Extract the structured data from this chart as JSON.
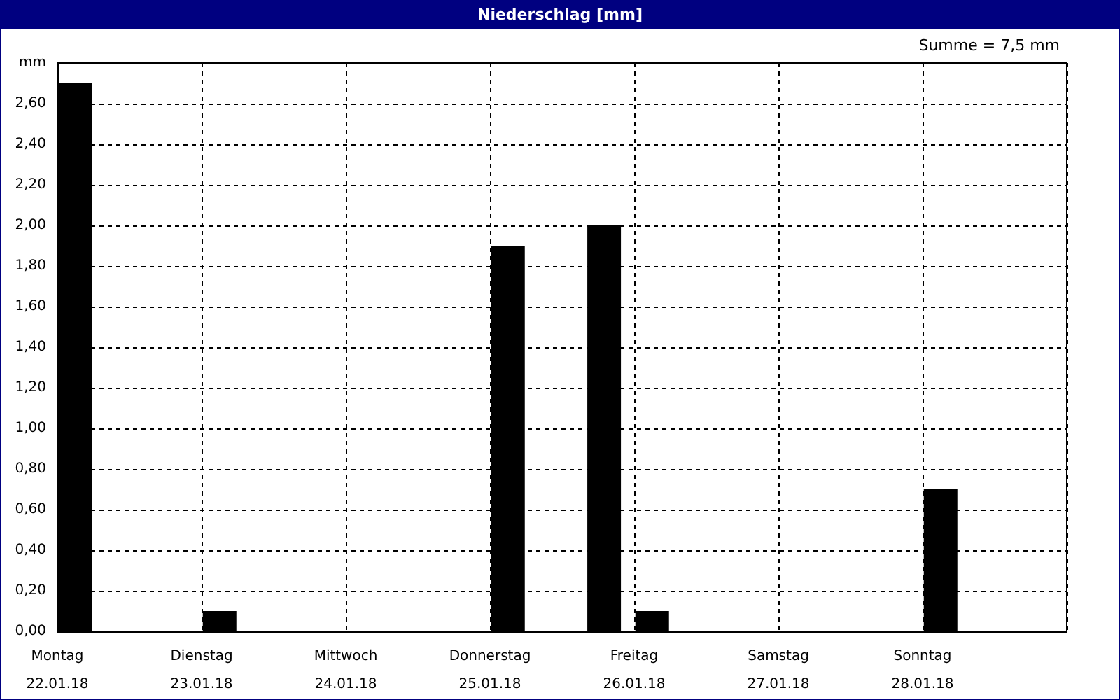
{
  "chart_data": {
    "type": "bar",
    "title": "Niederschlag [mm]",
    "annotations": [
      "Summe = 7,5 mm"
    ],
    "x": [
      "--01-22T03:00",
      "--01-23T03:00",
      "--01-25T03:00",
      "--01-25T19:00",
      "--01-26T03:00",
      "--01-28T03:00"
    ],
    "values": [
      2.7,
      0.1,
      1.9,
      2.0,
      0.1,
      0.7
    ],
    "color": "#000000",
    "xlim": [
      "--01-22T00:00",
      "--01-29T00:00"
    ],
    "xticks": [
      {
        "value": "--01-22T00:00",
        "label": "Montag\n22.01.18"
      },
      {
        "value": "--01-23T00:00",
        "label": "Dienstag\n23.01.18"
      },
      {
        "value": "--01-24T00:00",
        "label": "Mittwoch\n24.01.18"
      },
      {
        "value": "--01-25T00:00",
        "label": "Donnerstag\n25.01.18"
      },
      {
        "value": "--01-26T00:00",
        "label": "Freitag\n26.01.18"
      },
      {
        "value": "--01-27T00:00",
        "label": "Samstag\n27.01.18"
      },
      {
        "value": "--01-28T00:00",
        "label": "Sonntag\n28.01.18"
      },
      {
        "value": "--01-29T00:00",
        "label": null
      }
    ],
    "ylim": [
      0,
      2.8
    ],
    "yticks": [
      {
        "value": 0,
        "label": "0,00"
      },
      {
        "value": 0.2,
        "label": "0,20"
      },
      {
        "value": 0.4,
        "label": "0,40"
      },
      {
        "value": 0.6,
        "label": "0,60"
      },
      {
        "value": 0.8,
        "label": "0,80"
      },
      {
        "value": 1.0,
        "label": "1,00"
      },
      {
        "value": 1.2,
        "label": "1,20"
      },
      {
        "value": 1.4,
        "label": "1,40"
      },
      {
        "value": 1.6,
        "label": "1,60"
      },
      {
        "value": 1.8,
        "label": "1,80"
      },
      {
        "value": 2.0,
        "label": "2,00"
      },
      {
        "value": 2.2,
        "label": "2,20"
      },
      {
        "value": 2.4,
        "label": "2,40"
      },
      {
        "value": 2.6,
        "label": "2,60"
      },
      {
        "value": 2.8,
        "label": "mm"
      }
    ],
    "grid": true
  }
}
